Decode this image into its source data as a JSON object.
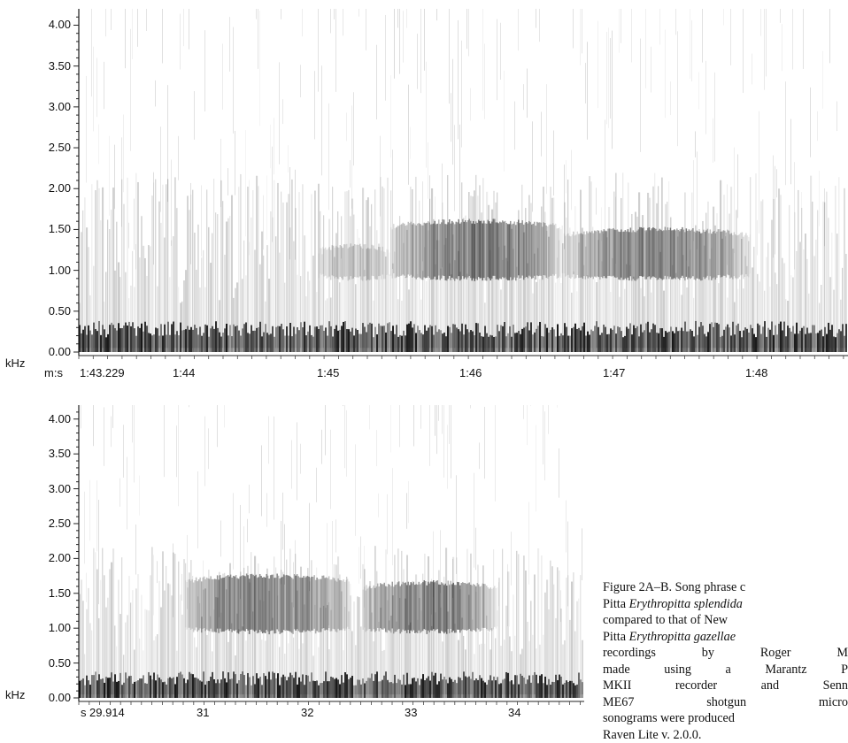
{
  "figure": {
    "panel_a": {
      "y_unit": "kHz",
      "y_ticks": [
        "4.00",
        "3.50",
        "3.00",
        "2.50",
        "2.00",
        "1.50",
        "1.00",
        "0.50",
        "0.00"
      ],
      "x_unit": "m:s",
      "x_ticks": [
        "1:43.229",
        "1:44",
        "1:45",
        "1:46",
        "1:47",
        "1:48"
      ]
    },
    "panel_b": {
      "y_unit": "kHz",
      "y_ticks": [
        "4.00",
        "3.50",
        "3.00",
        "2.50",
        "2.00",
        "1.50",
        "1.00",
        "0.50",
        "0.00"
      ],
      "x_unit": "s",
      "x_ticks": [
        "29.914",
        "31",
        "32",
        "33",
        "34"
      ]
    }
  },
  "caption": {
    "line1": "Figure 2A–B. Song phrase c",
    "line2_a": "Pitta ",
    "line2_species": "Erythropitta splendida",
    "line3": "compared to that of New",
    "line4_a": "Pitta ",
    "line4_species": "Erythropitta gazellae",
    "line5": "recordings by Roger M",
    "line6": "made using a Marantz P",
    "line7": "MKII recorder and Senn",
    "line8": "ME67 shotgun micro",
    "line9": "sonograms were produced",
    "line10": "Raven Lite v. 2.0.0."
  },
  "chart_data": [
    {
      "type": "heatmap",
      "title": "",
      "ylabel": "kHz",
      "xlabel": "m:s",
      "ylim": [
        0,
        4.2
      ],
      "x_ticks": [
        "1:43.229",
        "1:44",
        "1:45",
        "1:46",
        "1:47",
        "1:48"
      ],
      "notes_kHz_ranges": [
        {
          "start": "1:45.0",
          "end": "1:45.5",
          "low": 0.9,
          "high": 1.3,
          "intensity": 0.35
        },
        {
          "start": "1:45.5",
          "end": "1:46.7",
          "low": 0.9,
          "high": 1.6,
          "intensity": 0.85
        },
        {
          "start": "1:46.7",
          "end": "1:48.0",
          "low": 0.9,
          "high": 1.5,
          "intensity": 0.8
        }
      ]
    },
    {
      "type": "heatmap",
      "title": "",
      "ylabel": "kHz",
      "xlabel": "s",
      "ylim": [
        0,
        4.2
      ],
      "x_ticks": [
        "29.914",
        "31",
        "32",
        "33",
        "34"
      ],
      "notes_kHz_ranges": [
        {
          "start": 30.8,
          "end": 32.4,
          "low": 0.95,
          "high": 1.75,
          "intensity": 0.85
        },
        {
          "start": 32.5,
          "end": 33.8,
          "low": 0.95,
          "high": 1.65,
          "intensity": 0.85
        }
      ]
    }
  ]
}
